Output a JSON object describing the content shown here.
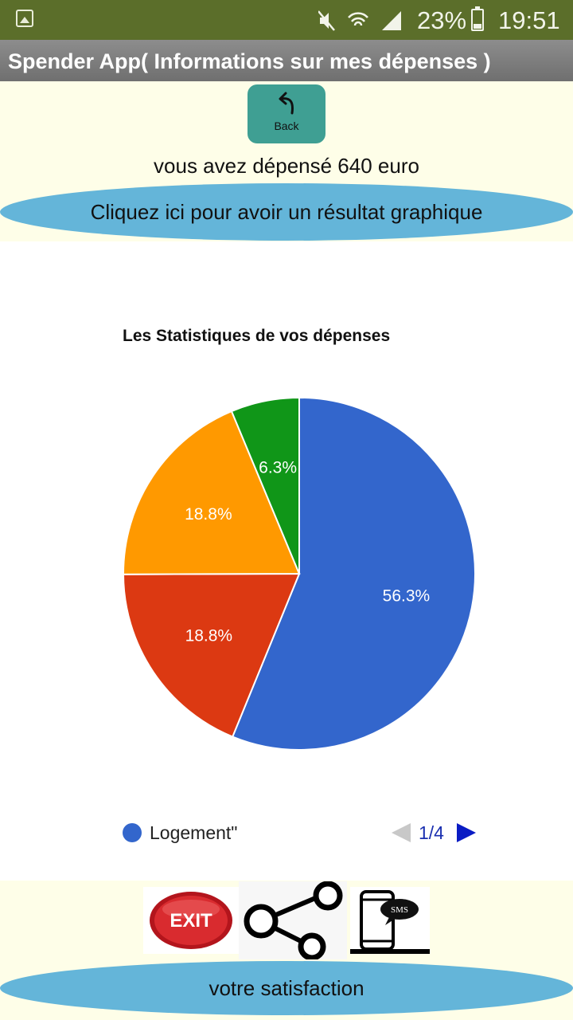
{
  "status_bar": {
    "battery": "23%",
    "time": "19:51",
    "icons": [
      "gallery-icon",
      "mute-icon",
      "wifi-icon",
      "signal-icon",
      "battery-icon"
    ]
  },
  "app": {
    "title": "Spender App( Informations sur mes dépenses  )"
  },
  "back_button": {
    "label": "Back",
    "icon": "back-arrow-icon"
  },
  "spent_text": "vous avez dépensé  640 euro",
  "graph_button": {
    "label": "Cliquez ici pour avoir un résultat graphique"
  },
  "chart_data": {
    "type": "pie",
    "title": "Les Statistiques de vos dépenses",
    "slices": [
      {
        "label": "Logement\"",
        "value": 56.3,
        "display": "56.3%",
        "color": "#3366cc"
      },
      {
        "label": "",
        "value": 18.8,
        "display": "18.8%",
        "color": "#dc3912"
      },
      {
        "label": "",
        "value": 18.8,
        "display": "18.8%",
        "color": "#ff9900"
      },
      {
        "label": "",
        "value": 6.3,
        "display": "6.3%",
        "color": "#109618"
      }
    ],
    "legend": {
      "visible_entry": "Logement\"",
      "visible_color": "#3366cc",
      "page": "1/4",
      "placement": "bottom"
    }
  },
  "bottom_actions": {
    "exit_label": "EXIT",
    "sms_label": "SMS"
  },
  "satisfaction_button": {
    "label": "votre satisfaction"
  },
  "colors": {
    "status_bar": "#5b6e2a",
    "title_bar": "#7d7d7d",
    "back_button": "#3f9f93",
    "pill_button": "#64b5d9",
    "page_background": "#fefee8"
  }
}
